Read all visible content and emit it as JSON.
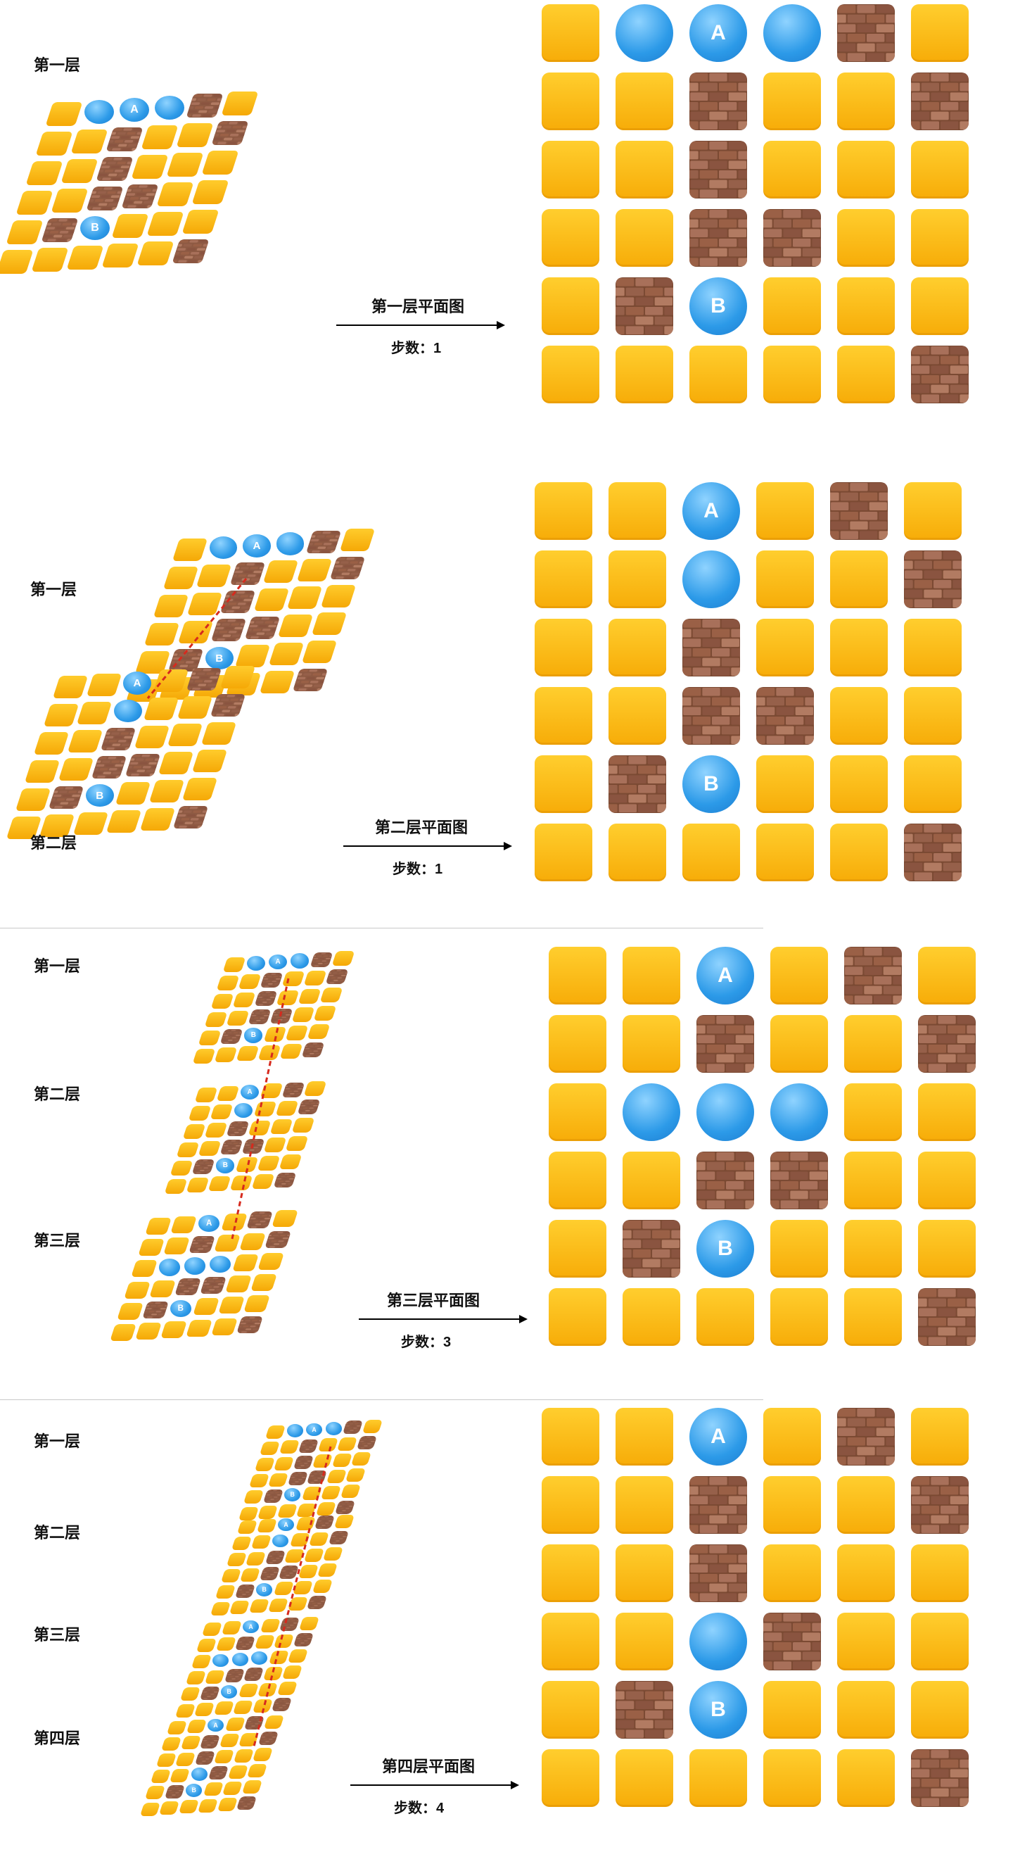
{
  "panels": [
    {
      "labels": [
        "第一层"
      ],
      "arrow_title": "第一层平面图",
      "steps": "步数：1",
      "grid": [
        [
          "T",
          "O",
          "A",
          "O",
          "W",
          "T"
        ],
        [
          "T",
          "T",
          "W",
          "T",
          "T",
          "W"
        ],
        [
          "T",
          "T",
          "W",
          "T",
          "T",
          "T"
        ],
        [
          "T",
          "T",
          "W",
          "W",
          "T",
          "T"
        ],
        [
          "T",
          "W",
          "B",
          "T",
          "T",
          "T"
        ],
        [
          "T",
          "T",
          "T",
          "T",
          "T",
          "W"
        ]
      ]
    },
    {
      "labels": [
        "第一层",
        "第二层"
      ],
      "arrow_title": "第二层平面图",
      "steps": "步数：1",
      "grid": [
        [
          "T",
          "T",
          "A",
          "T",
          "W",
          "T"
        ],
        [
          "T",
          "T",
          "O",
          "T",
          "T",
          "W"
        ],
        [
          "T",
          "T",
          "W",
          "T",
          "T",
          "T"
        ],
        [
          "T",
          "T",
          "W",
          "W",
          "T",
          "T"
        ],
        [
          "T",
          "W",
          "B",
          "T",
          "T",
          "T"
        ],
        [
          "T",
          "T",
          "T",
          "T",
          "T",
          "W"
        ]
      ]
    },
    {
      "labels": [
        "第一层",
        "第二层",
        "第三层"
      ],
      "arrow_title": "第三层平面图",
      "steps": "步数：3",
      "grid": [
        [
          "T",
          "T",
          "A",
          "T",
          "W",
          "T"
        ],
        [
          "T",
          "T",
          "W",
          "T",
          "T",
          "W"
        ],
        [
          "T",
          "O",
          "O",
          "O",
          "T",
          "T"
        ],
        [
          "T",
          "T",
          "W",
          "W",
          "T",
          "T"
        ],
        [
          "T",
          "W",
          "B",
          "T",
          "T",
          "T"
        ],
        [
          "T",
          "T",
          "T",
          "T",
          "T",
          "W"
        ]
      ]
    },
    {
      "labels": [
        "第一层",
        "第二层",
        "第三层",
        "第四层"
      ],
      "arrow_title": "第四层平面图",
      "steps": "步数：4",
      "grid": [
        [
          "T",
          "T",
          "A",
          "T",
          "W",
          "T"
        ],
        [
          "T",
          "T",
          "W",
          "T",
          "T",
          "W"
        ],
        [
          "T",
          "T",
          "W",
          "T",
          "T",
          "T"
        ],
        [
          "T",
          "T",
          "O",
          "W",
          "T",
          "T"
        ],
        [
          "T",
          "W",
          "B",
          "T",
          "T",
          "T"
        ],
        [
          "T",
          "T",
          "T",
          "T",
          "T",
          "W"
        ]
      ]
    }
  ],
  "legend": {
    "T": "tile",
    "W": "brick-wall",
    "O": "ball",
    "A": "ball-A",
    "B": "ball-B"
  },
  "ball_letters": {
    "A": "A",
    "B": "B"
  },
  "colors": {
    "tile": "#f9b70f",
    "brick": "#7b4a33",
    "ball": "#2c9ae8",
    "arrow": "#000000",
    "path": "#d62a1e"
  }
}
